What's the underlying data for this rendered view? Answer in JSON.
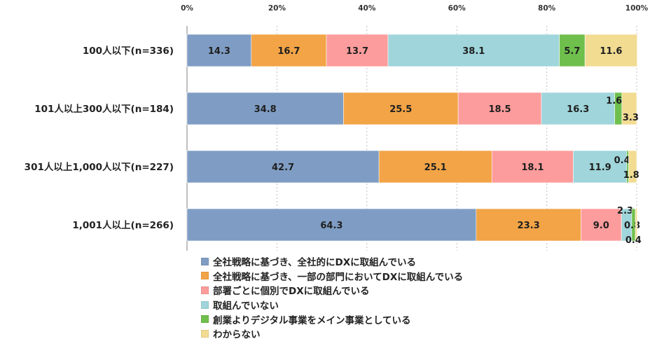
{
  "chart_data": {
    "type": "bar",
    "orientation": "horizontal",
    "stacked": true,
    "percent": true,
    "title": "",
    "xlabel": "",
    "ylabel": "",
    "xlim": [
      0,
      100
    ],
    "x_ticks": [
      "0%",
      "20%",
      "40%",
      "60%",
      "80%",
      "100%"
    ],
    "x_axis_position": "top",
    "grid": true,
    "legend_position": "bottom",
    "categories": [
      "100人以下(n=336)",
      "101人以上300人以下(n=184)",
      "301人以上1,000人以下(n=227)",
      "1,001人以上(n=266)"
    ],
    "series": [
      {
        "name": "全社戦略に基づき、全社的にDXに取組んでいる",
        "color": "#7f9dc4",
        "values": [
          14.3,
          34.8,
          42.7,
          64.3
        ]
      },
      {
        "name": "全社戦略に基づき、一部の部門においてDXに取組んでいる",
        "color": "#f2a446",
        "values": [
          16.7,
          25.5,
          25.1,
          23.3
        ]
      },
      {
        "name": "部署ごとに個別でDXに取組んでいる",
        "color": "#fd9c9c",
        "values": [
          13.7,
          18.5,
          18.1,
          9.0
        ]
      },
      {
        "name": "取組んでいない",
        "color": "#9fd5db",
        "values": [
          38.1,
          16.3,
          11.9,
          2.3
        ]
      },
      {
        "name": "創業よりデジタル事業をメイン事業としている",
        "color": "#6fbf4d",
        "values": [
          5.7,
          1.6,
          0.4,
          0.8
        ]
      },
      {
        "name": "わからない",
        "color": "#f2dc92",
        "values": [
          11.6,
          3.3,
          1.8,
          0.4
        ]
      }
    ],
    "value_labels": [
      [
        "14.3",
        "16.7",
        "13.7",
        "38.1",
        "5.7",
        "11.6"
      ],
      [
        "34.8",
        "25.5",
        "18.5",
        "16.3",
        "1.6",
        "3.3"
      ],
      [
        "42.7",
        "25.1",
        "18.1",
        "11.9",
        "0.4",
        "1.8"
      ],
      [
        "64.3",
        "23.3",
        "9.0",
        "2.3",
        "0.8",
        "0.4"
      ]
    ]
  }
}
